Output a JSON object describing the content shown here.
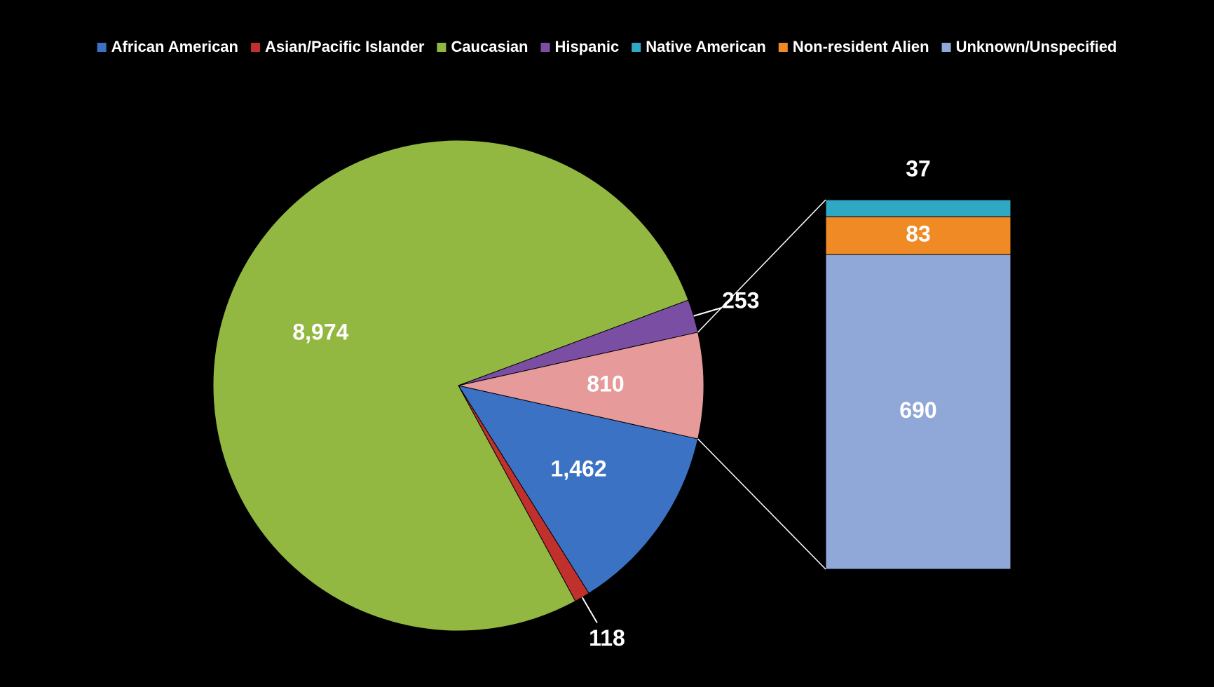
{
  "chart_data": {
    "type": "bar-of-pie",
    "categories": [
      "African American",
      "Asian/Pacific Islander",
      "Caucasian",
      "Hispanic",
      "Native American",
      "Non-resident Alien",
      "Unknown/Unspecified"
    ],
    "values": [
      1462,
      118,
      8974,
      253,
      37,
      83,
      690
    ],
    "value_labels": [
      "1,462",
      "118",
      "8,974",
      "253",
      "37",
      "83",
      "690"
    ],
    "colors": [
      "#3b72c4",
      "#c0302c",
      "#93b842",
      "#7a4ea3",
      "#2fa8c4",
      "#f08a24",
      "#8fa8d8"
    ],
    "secondary": [
      4,
      5,
      6
    ],
    "secondary_total": 810,
    "secondary_color": "#e79a9a",
    "legend": "top"
  }
}
